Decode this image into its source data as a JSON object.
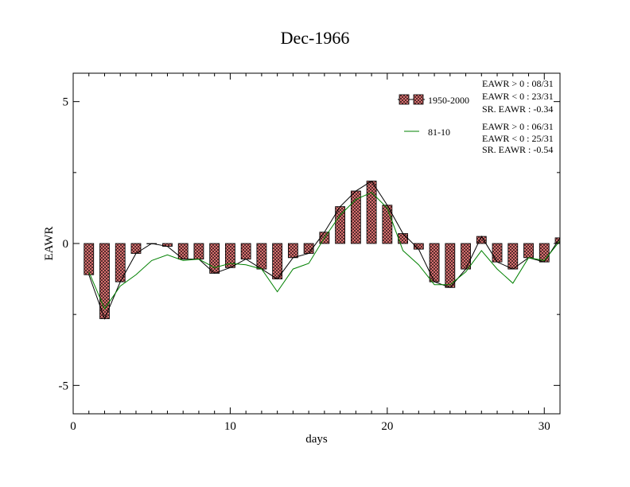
{
  "chart_data": {
    "type": "bar",
    "title": "Dec-1966",
    "xlabel": "days",
    "ylabel": "EAWR",
    "xlim": [
      0,
      31
    ],
    "ylim": [
      -6,
      6
    ],
    "xticks": [
      0,
      10,
      20,
      30
    ],
    "yticks": [
      -5,
      0,
      5
    ],
    "x": [
      1,
      2,
      3,
      4,
      5,
      6,
      7,
      8,
      9,
      10,
      11,
      12,
      13,
      14,
      15,
      16,
      17,
      18,
      19,
      20,
      21,
      22,
      23,
      24,
      25,
      26,
      27,
      28,
      29,
      30,
      31
    ],
    "series": [
      {
        "name": "1950-2000",
        "style": "hatched-bar-with-line",
        "bar_color": "#e87878",
        "line_color": "#000000",
        "values": [
          -1.1,
          -2.65,
          -1.35,
          -0.35,
          0.0,
          -0.1,
          -0.55,
          -0.55,
          -1.05,
          -0.85,
          -0.55,
          -0.9,
          -1.25,
          -0.5,
          -0.35,
          0.4,
          1.3,
          1.85,
          2.2,
          1.35,
          0.35,
          -0.2,
          -1.35,
          -1.55,
          -0.9,
          0.25,
          -0.65,
          -0.9,
          -0.5,
          -0.65,
          0.2
        ]
      },
      {
        "name": "81-10",
        "style": "line",
        "line_color": "#008000",
        "values": [
          -1.0,
          -2.3,
          -1.5,
          -1.1,
          -0.6,
          -0.4,
          -0.6,
          -0.55,
          -0.85,
          -0.7,
          -0.75,
          -0.9,
          -1.7,
          -0.9,
          -0.7,
          0.2,
          1.0,
          1.55,
          1.8,
          1.25,
          -0.25,
          -0.75,
          -1.45,
          -1.45,
          -1.0,
          -0.25,
          -0.9,
          -1.4,
          -0.5,
          -0.6,
          0.1
        ]
      }
    ],
    "legend": {
      "position": "top-right",
      "entries": [
        "1950-2000",
        "81-10"
      ]
    },
    "stats": [
      [
        "EAWR > 0 : 08/31",
        "EAWR < 0 : 23/31",
        "SR. EAWR : -0.34"
      ],
      [
        "EAWR > 0 : 06/31",
        "EAWR < 0 : 25/31",
        "SR. EAWR : -0.54"
      ]
    ],
    "grid": false
  }
}
